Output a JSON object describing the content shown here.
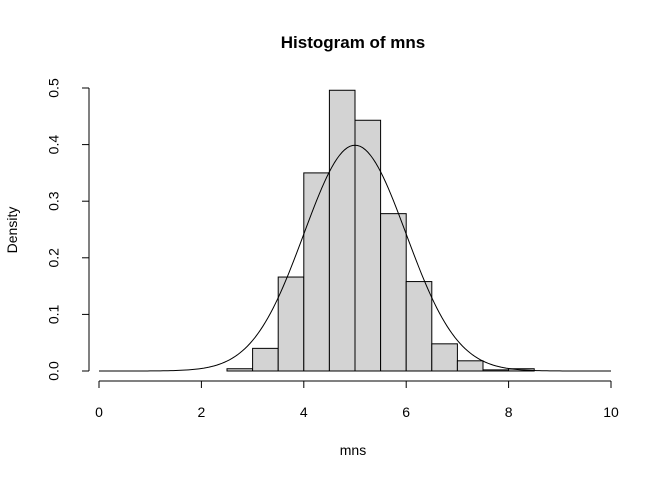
{
  "chart_data": {
    "type": "bar",
    "title": "Histogram of mns",
    "xlabel": "mns",
    "ylabel": "Density",
    "xlim": [
      0,
      10
    ],
    "ylim": [
      0,
      0.5
    ],
    "x_ticks": [
      "0",
      "2",
      "4",
      "6",
      "8",
      "10"
    ],
    "y_ticks": [
      "0.0",
      "0.1",
      "0.2",
      "0.3",
      "0.4",
      "0.5"
    ],
    "bin_width": 0.5,
    "bins": [
      {
        "start": 2.5,
        "end": 3.0,
        "density": 0.004
      },
      {
        "start": 3.0,
        "end": 3.5,
        "density": 0.04
      },
      {
        "start": 3.5,
        "end": 4.0,
        "density": 0.166
      },
      {
        "start": 4.0,
        "end": 4.5,
        "density": 0.35
      },
      {
        "start": 4.5,
        "end": 5.0,
        "density": 0.496
      },
      {
        "start": 5.0,
        "end": 5.5,
        "density": 0.443
      },
      {
        "start": 5.5,
        "end": 6.0,
        "density": 0.278
      },
      {
        "start": 6.0,
        "end": 6.5,
        "density": 0.158
      },
      {
        "start": 6.5,
        "end": 7.0,
        "density": 0.048
      },
      {
        "start": 7.0,
        "end": 7.5,
        "density": 0.018
      },
      {
        "start": 7.5,
        "end": 8.0,
        "density": 0.002
      },
      {
        "start": 8.0,
        "end": 8.5,
        "density": 0.004
      }
    ],
    "overlay_curve": {
      "type": "normal_density",
      "mean": 5,
      "sd": 1,
      "x_range": [
        0,
        10
      ]
    },
    "bar_fill": "#d3d3d3",
    "bar_stroke": "#000000",
    "grid": false,
    "legend": "none"
  }
}
